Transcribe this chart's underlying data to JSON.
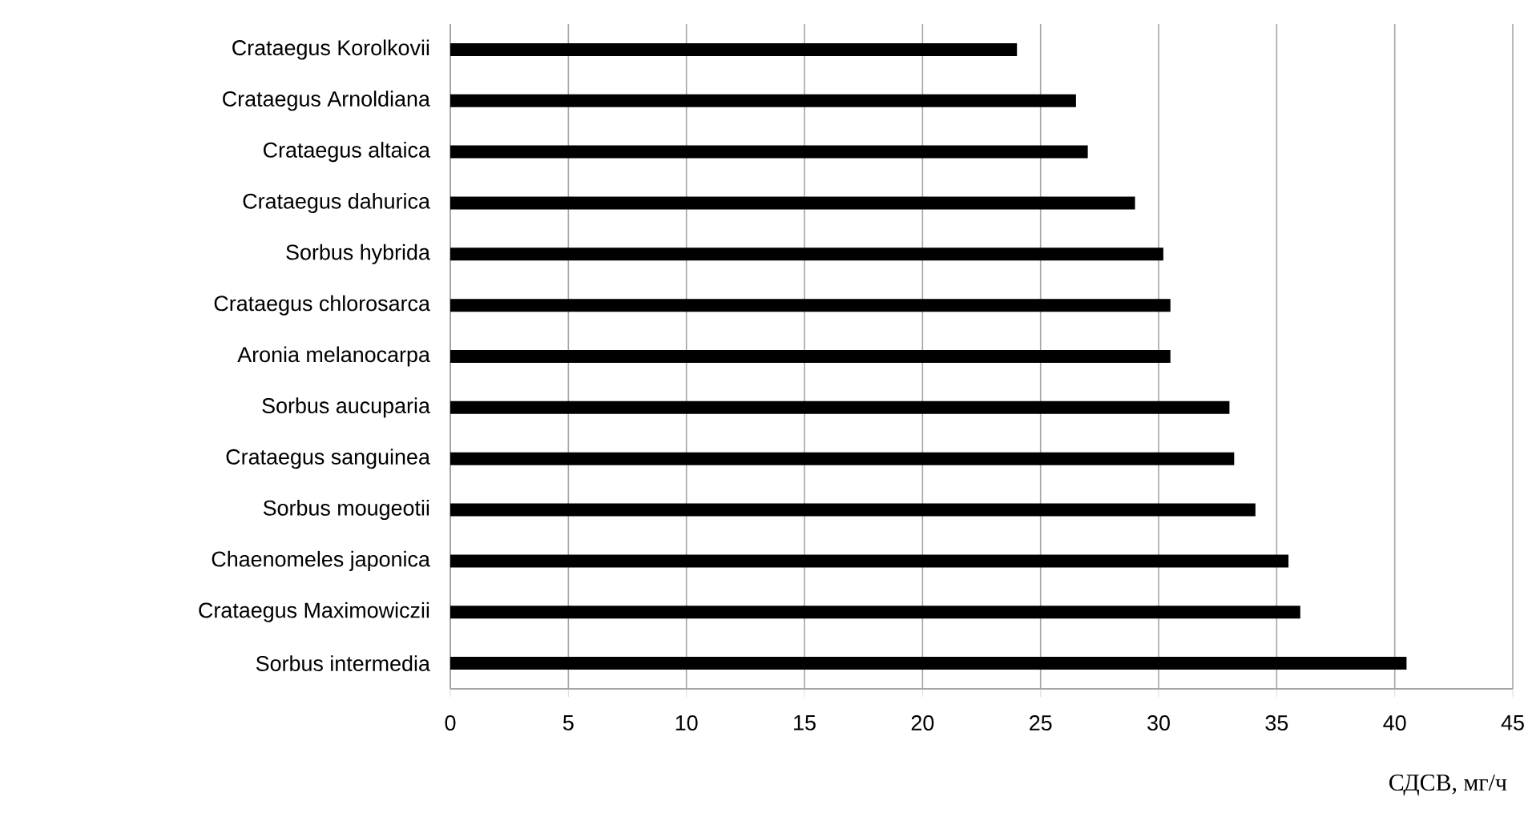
{
  "chart_data": {
    "type": "bar",
    "orientation": "horizontal",
    "xlabel": "СДСВ, мг/ч",
    "categories": [
      "Crataegus Korolkovii",
      "Crataegus Arnoldiana",
      "Crataegus altaica",
      "Crataegus dahurica",
      "Sorbus hybrida",
      "Crataegus chlorosarca",
      "Aronia melanocarpa",
      "Sorbus aucuparia",
      "Crataegus sanguinea",
      "Sorbus mougeotii",
      "Chaenomeles japonica",
      "Crataegus Maximowiczii",
      "Sorbus intermedia"
    ],
    "values": [
      24.0,
      26.5,
      27.0,
      29.0,
      30.2,
      30.5,
      30.5,
      33.0,
      33.2,
      34.1,
      35.5,
      36.0,
      40.5
    ],
    "color": "#000000",
    "xlim": [
      0,
      45
    ],
    "xticks": [
      0,
      5,
      10,
      15,
      20,
      25,
      30,
      35,
      40,
      45
    ],
    "grid": "x"
  }
}
